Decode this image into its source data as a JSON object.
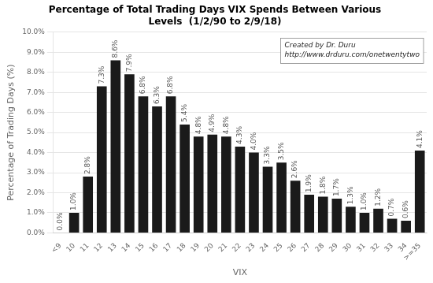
{
  "chart_data": {
    "type": "bar",
    "title": "Percentage of Total Trading Days VIX Spends Between Various\nLevels  (1/2/90 to 2/9/18)",
    "x_label": "VIX",
    "y_label": "Percentage of Trading Days (%)",
    "categories": [
      "<9",
      "10",
      "11",
      "12",
      "13",
      "14",
      "15",
      "16",
      "17",
      "18",
      "19",
      "20",
      "21",
      "22",
      "23",
      "24",
      "25",
      "26",
      "27",
      "28",
      "29",
      "30",
      "31",
      "32",
      "33",
      "34",
      ">=35"
    ],
    "values": [
      0.0,
      1.0,
      2.8,
      7.3,
      8.6,
      7.9,
      6.8,
      6.3,
      6.8,
      5.4,
      4.8,
      4.9,
      4.8,
      4.3,
      4.0,
      3.3,
      3.5,
      2.6,
      1.9,
      1.8,
      1.7,
      1.3,
      1.0,
      1.2,
      0.7,
      0.6,
      4.1
    ],
    "value_labels": [
      "0.0%",
      "1.0%",
      "2.8%",
      "7.3%",
      "8.6%",
      "7.9%",
      "6.8%",
      "6.3%",
      "6.8%",
      "5.4%",
      "4.8%",
      "4.9%",
      "4.8%",
      "4.3%",
      "4.0%",
      "3.3%",
      "3.5%",
      "2.6%",
      "1.9%",
      "1.8%",
      "1.7%",
      "1.3%",
      "1.0%",
      "1.2%",
      "0.7%",
      "0.6%",
      "4.1%"
    ],
    "data_labels": true,
    "color": "#1a1a1a",
    "ylim": [
      0.0,
      10.0
    ],
    "yticks": [
      {
        "value": 0,
        "label": "0.0%"
      },
      {
        "value": 1,
        "label": "1.0%"
      },
      {
        "value": 2,
        "label": "2.0%"
      },
      {
        "value": 3,
        "label": "3.0%"
      },
      {
        "value": 4,
        "label": "4.0%"
      },
      {
        "value": 5,
        "label": "5.0%"
      },
      {
        "value": 6,
        "label": "6.0%"
      },
      {
        "value": 7,
        "label": "7.0%"
      },
      {
        "value": 8,
        "label": "8.0%"
      },
      {
        "value": 9,
        "label": "9.0%"
      },
      {
        "value": 10,
        "label": "10.0%"
      }
    ],
    "grid": true,
    "annotation": "Created by Dr. Duru\nhttp://www.drduru.com/onetwentytwo"
  }
}
